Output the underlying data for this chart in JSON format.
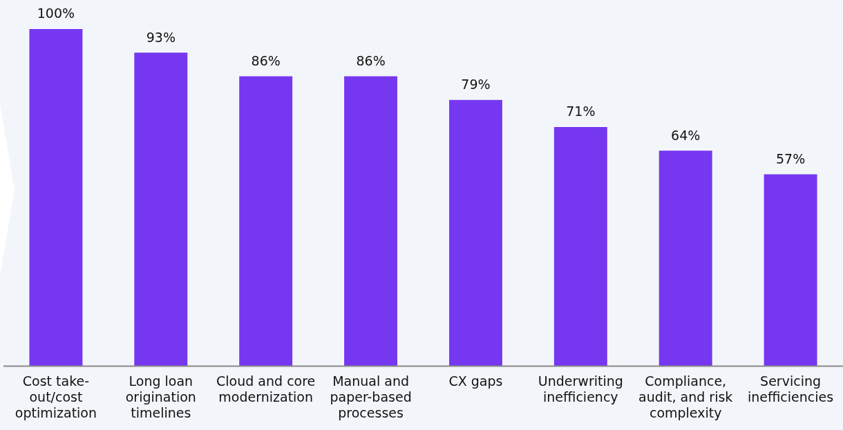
{
  "chart_data": {
    "type": "bar",
    "categories": [
      "Cost take-out/cost optimization",
      "Long loan origination timelines",
      "Cloud and core modernization",
      "Manual and paper-based processes",
      "CX gaps",
      "Underwriting inefficiency",
      "Compliance, audit, and risk complexity",
      "Servicing inefficiencies"
    ],
    "values": [
      100,
      93,
      86,
      86,
      79,
      71,
      64,
      57
    ],
    "value_labels": [
      "100%",
      "93%",
      "86%",
      "86%",
      "79%",
      "71%",
      "64%",
      "57%"
    ],
    "color": "#7538f0",
    "ylim": [
      0,
      100
    ],
    "tick_labels": "x",
    "grid": false,
    "legend": false
  }
}
